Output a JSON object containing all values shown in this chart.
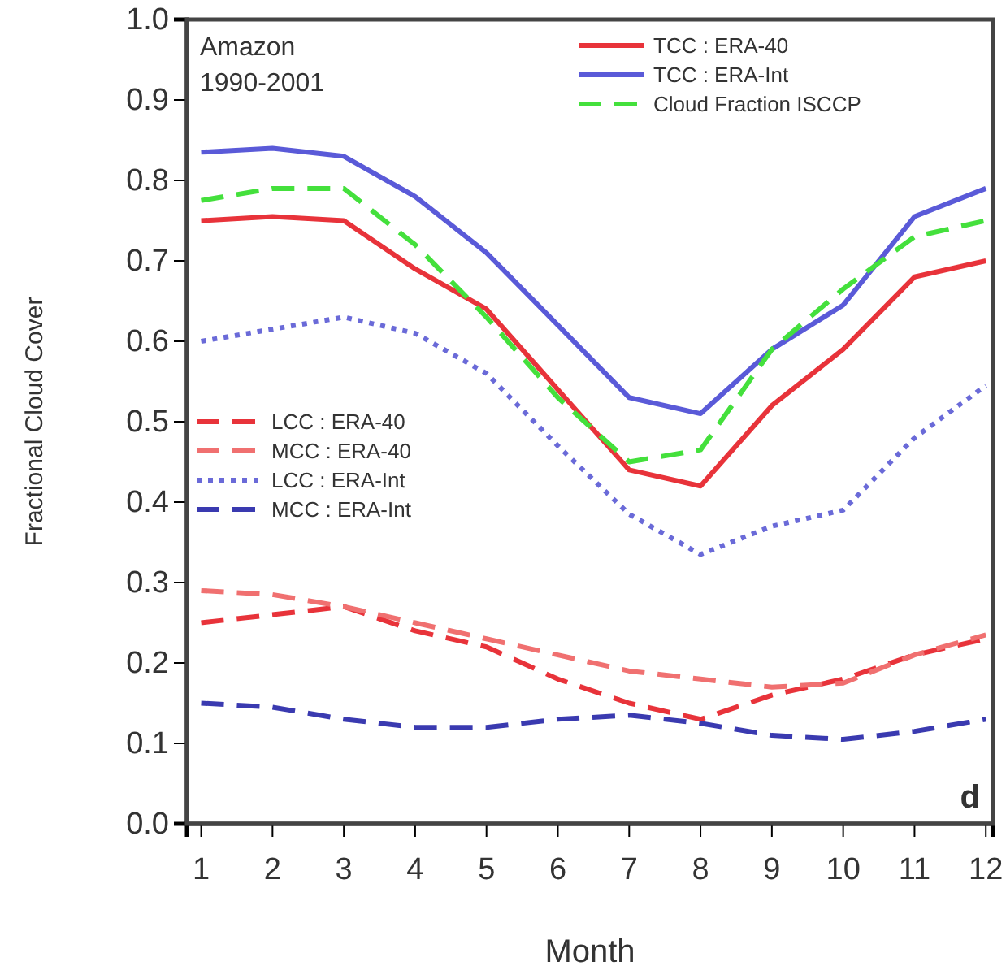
{
  "chart_data": {
    "type": "line",
    "title": "Amazon",
    "subtitle": "1990-2001",
    "xlabel": "Month",
    "ylabel": "Fractional Cloud Cover",
    "annotations": [
      "d"
    ],
    "x": [
      1,
      2,
      3,
      4,
      5,
      6,
      7,
      8,
      9,
      10,
      11,
      12
    ],
    "xlim": [
      0.8,
      12.1
    ],
    "xticks": [
      1,
      2,
      3,
      4,
      5,
      6,
      7,
      8,
      9,
      10,
      11,
      12
    ],
    "ylim": [
      0,
      1
    ],
    "yticks": [
      {
        "value": 0,
        "label": "0.0"
      },
      0.1,
      0.2,
      0.3,
      0.4,
      0.5,
      0.6,
      0.7,
      0.8,
      0.9,
      {
        "value": 1,
        "label": "1.0"
      }
    ],
    "grid": false,
    "legend": "top",
    "marker": "none",
    "series": [
      {
        "name": "TCC : ERA-40",
        "color": "#e8333a",
        "line_style": "solid",
        "values": [
          0.75,
          0.755,
          0.75,
          0.69,
          0.64,
          0.54,
          0.44,
          0.42,
          0.52,
          0.59,
          0.68,
          0.7
        ]
      },
      {
        "name": "TCC : ERA-Int",
        "color": "#5a5ad8",
        "line_style": "solid",
        "values": [
          0.835,
          0.84,
          0.83,
          0.78,
          0.71,
          0.62,
          0.53,
          0.51,
          0.59,
          0.645,
          0.755,
          0.79
        ]
      },
      {
        "name": "Cloud Fraction ISCCP",
        "color": "#44e03c",
        "line_style": "dashed",
        "values": [
          0.775,
          0.79,
          0.79,
          0.72,
          0.63,
          0.53,
          0.45,
          0.465,
          0.59,
          0.665,
          0.73,
          0.75
        ]
      },
      {
        "name": "LCC : ERA-40",
        "color": "#e8333a",
        "line_style": "dashed",
        "values": [
          0.25,
          0.26,
          0.27,
          0.24,
          0.22,
          0.18,
          0.15,
          0.13,
          0.16,
          0.18,
          0.21,
          0.23
        ]
      },
      {
        "name": "MCC : ERA-40",
        "color": "#f07070",
        "line_style": "dashed",
        "values": [
          0.29,
          0.285,
          0.27,
          0.25,
          0.23,
          0.21,
          0.19,
          0.18,
          0.17,
          0.175,
          0.21,
          0.235
        ]
      },
      {
        "name": "LCC : ERA-Int",
        "color": "#6a6ad8",
        "line_style": "dotted",
        "values": [
          0.6,
          0.615,
          0.63,
          0.61,
          0.56,
          0.47,
          0.385,
          0.335,
          0.37,
          0.39,
          0.48,
          0.545
        ]
      },
      {
        "name": "MCC : ERA-Int",
        "color": "#3a3ab0",
        "line_style": "dashed",
        "values": [
          0.15,
          0.145,
          0.13,
          0.12,
          0.12,
          0.13,
          0.135,
          0.125,
          0.11,
          0.105,
          0.115,
          0.13
        ]
      }
    ]
  }
}
